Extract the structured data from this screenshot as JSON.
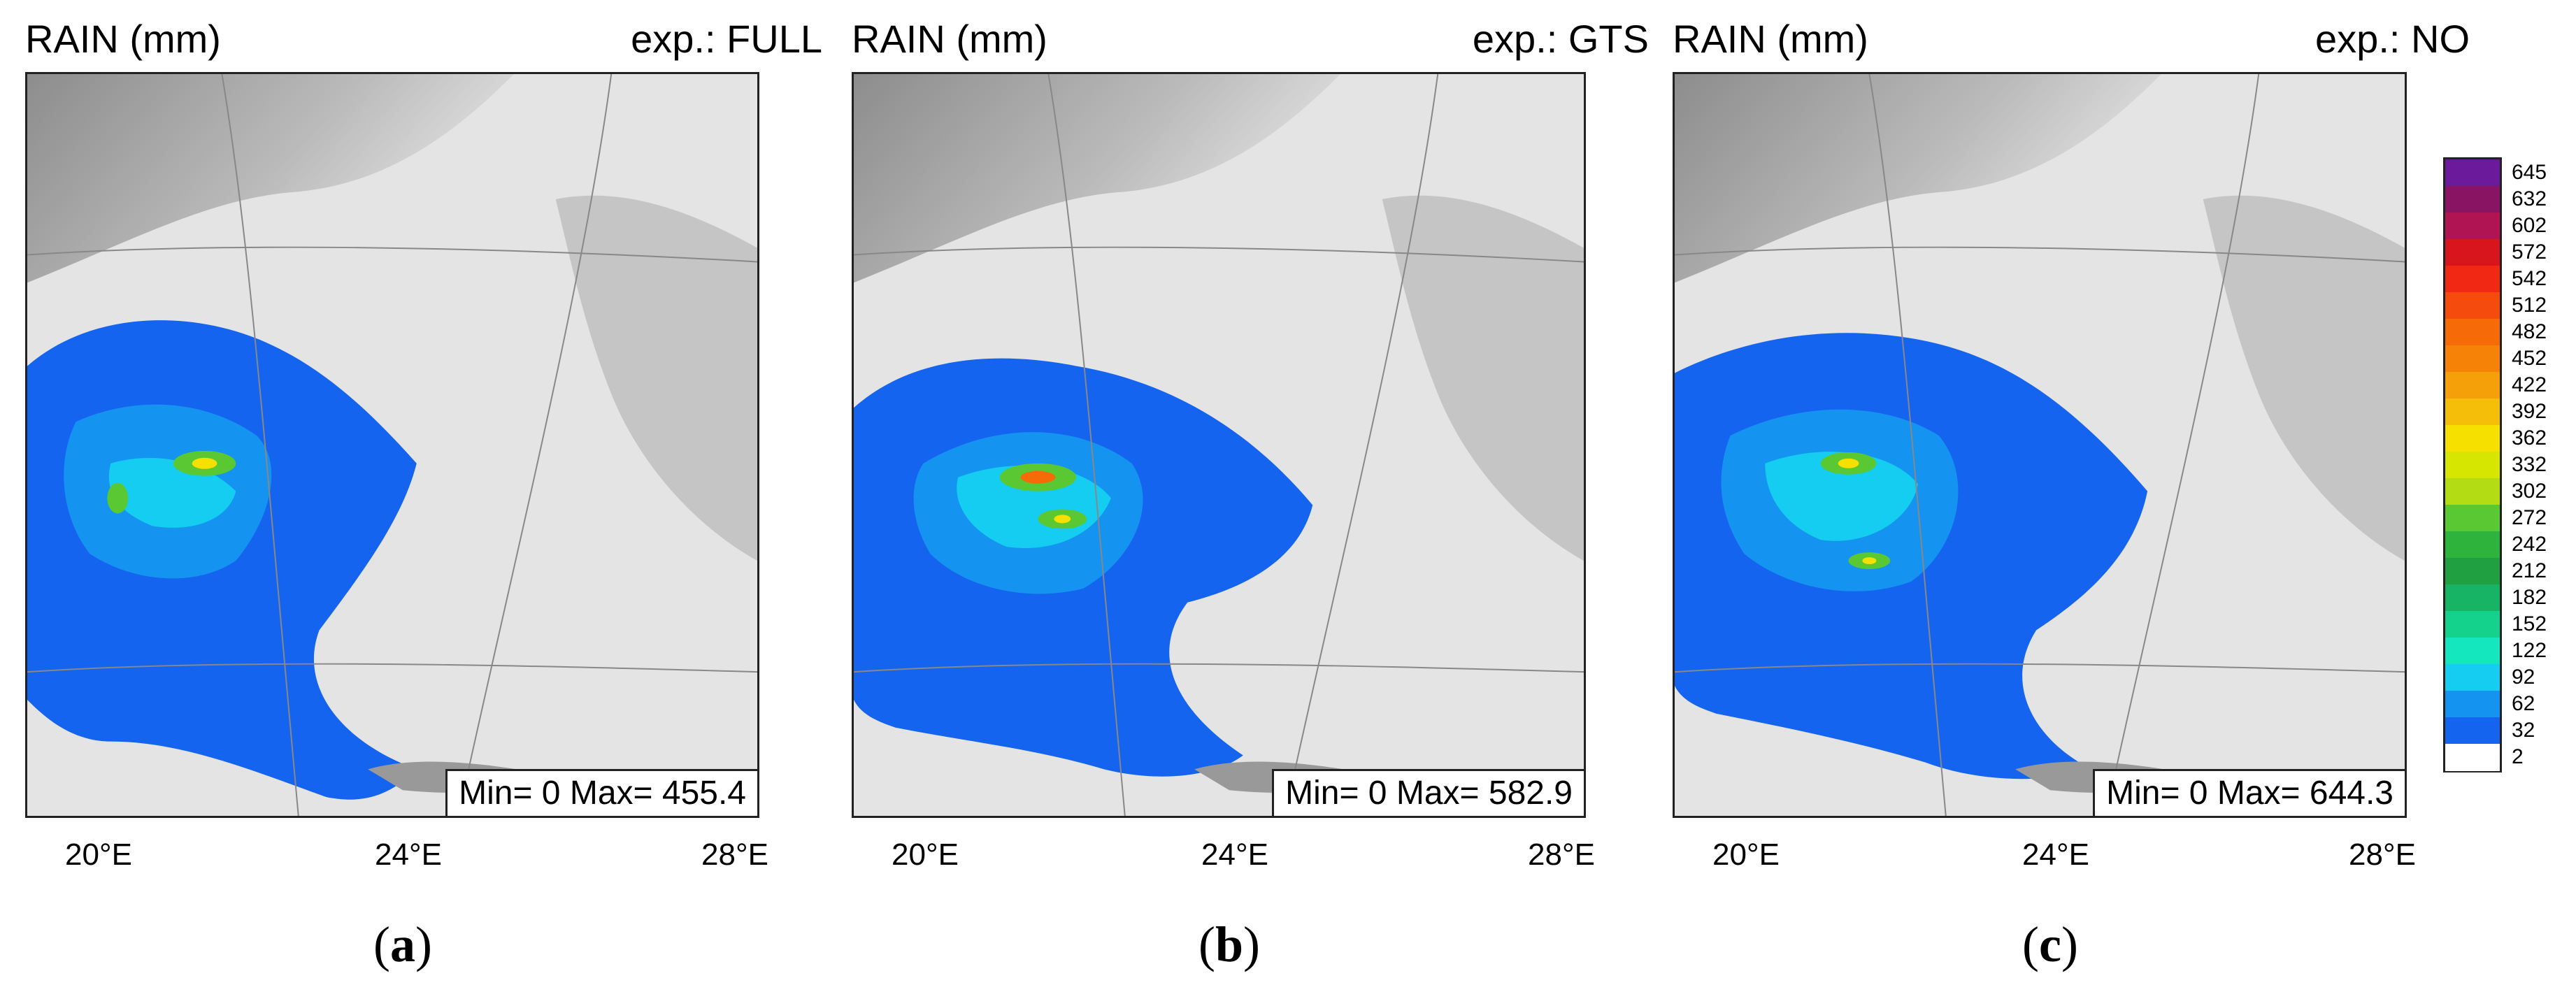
{
  "panels": [
    {
      "field": "RAIN (mm)",
      "experiment": "exp.: FULL",
      "stats": "Min= 0 Max= 455.4",
      "caption": "a"
    },
    {
      "field": "RAIN (mm)",
      "experiment": "exp.: GTS",
      "stats": "Min= 0 Max= 582.9",
      "caption": "b"
    },
    {
      "field": "RAIN (mm)",
      "experiment": "exp.: NO",
      "stats": "Min= 0 Max= 644.3",
      "caption": "c"
    }
  ],
  "lon_labels": [
    "20°E",
    "24°E",
    "28°E"
  ],
  "colorbar": {
    "levels": [
      "645",
      "632",
      "602",
      "572",
      "542",
      "512",
      "482",
      "452",
      "422",
      "392",
      "362",
      "332",
      "302",
      "272",
      "242",
      "212",
      "182",
      "152",
      "122",
      "92",
      "62",
      "32",
      "2"
    ],
    "colors": [
      "#6a1a9a",
      "#8a1464",
      "#b01452",
      "#d8141c",
      "#f02814",
      "#f54b0c",
      "#f66a08",
      "#f78208",
      "#f5a008",
      "#f5be08",
      "#f5e000",
      "#d7e600",
      "#b4dc14",
      "#5ac832",
      "#2eb43c",
      "#20a040",
      "#16b464",
      "#14d28c",
      "#14e6be",
      "#14cdf0",
      "#1493f0",
      "#1464f0",
      "#ffffff"
    ]
  },
  "map_colors": {
    "rain_core": "#1464f0",
    "rain_mid": "#14cdf0",
    "rain_peak": "#f5e000",
    "land": "#e4e4e4"
  }
}
